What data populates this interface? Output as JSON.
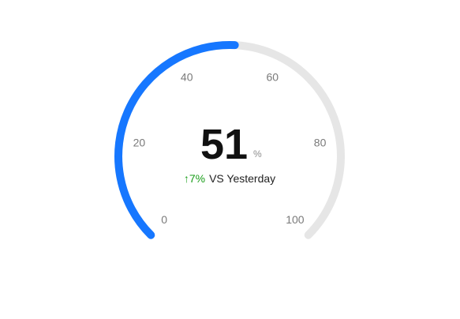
{
  "chart_data": {
    "type": "gauge",
    "value": 51,
    "unit": "%",
    "min": 0,
    "max": 100,
    "ticks": [
      0,
      20,
      40,
      60,
      80,
      100
    ],
    "change": {
      "arrow": "↑",
      "value": "7%",
      "label": "VS Yesterday"
    },
    "colors": {
      "progress": "#1677ff",
      "track": "#e6e6e6",
      "tick_label": "#7a7a7a",
      "value": "#111111",
      "unit": "#8c8c8c",
      "change_up": "#1a9e1a",
      "change_label": "#222222"
    }
  }
}
